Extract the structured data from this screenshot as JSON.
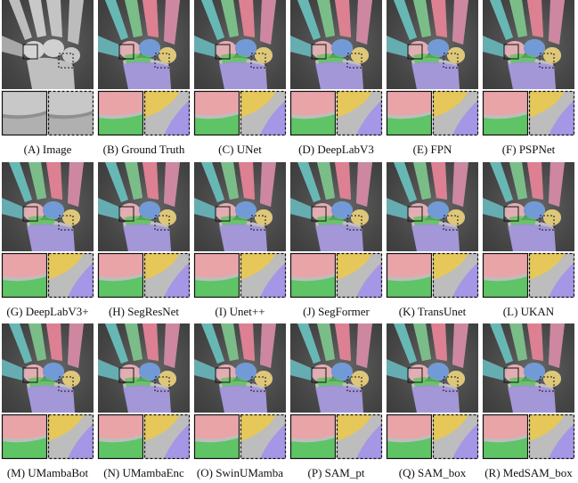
{
  "panels": [
    {
      "caption": "(A) Image"
    },
    {
      "caption": "(B) Ground Truth"
    },
    {
      "caption": "(C) UNet"
    },
    {
      "caption": "(D) DeepLabV3"
    },
    {
      "caption": "(E) FPN"
    },
    {
      "caption": "(F) PSPNet"
    },
    {
      "caption": "(G) DeepLabV3+"
    },
    {
      "caption": "(H) SegResNet"
    },
    {
      "caption": "(I) Unet++"
    },
    {
      "caption": "(J) SegFormer"
    },
    {
      "caption": "(K) TransUnet"
    },
    {
      "caption": "(L) UKAN"
    },
    {
      "caption": "(M) UMambaBot"
    },
    {
      "caption": "(N) UMambaEnc"
    },
    {
      "caption": "(O) SwinUMamba"
    },
    {
      "caption": "(P) SAM_pt"
    },
    {
      "caption": "(Q) SAM_box"
    },
    {
      "caption": "(R) MedSAM_box"
    }
  ]
}
